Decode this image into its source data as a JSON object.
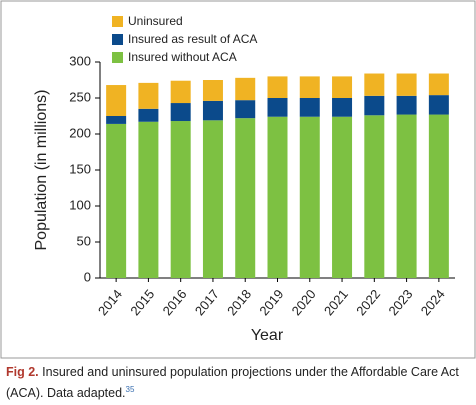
{
  "chart_data": {
    "type": "stacked-bar",
    "xlabel": "Year",
    "ylabel": "Population (in millions)",
    "categories": [
      "2014",
      "2015",
      "2016",
      "2017",
      "2018",
      "2019",
      "2020",
      "2021",
      "2022",
      "2023",
      "2024"
    ],
    "series": [
      {
        "name": "Uninsured",
        "color": "#f0b323",
        "values": [
          43,
          36,
          31,
          29,
          31,
          30,
          30,
          30,
          31,
          31,
          30
        ]
      },
      {
        "name": "Insured as result of ACA",
        "color": "#0b4a8b",
        "values": [
          11,
          18,
          25,
          27,
          25,
          26,
          26,
          26,
          27,
          26,
          27
        ]
      },
      {
        "name": "Insured without ACA",
        "color": "#7dc142",
        "values": [
          214,
          217,
          218,
          219,
          222,
          224,
          224,
          224,
          226,
          227,
          227
        ]
      }
    ],
    "ylim": [
      0,
      300
    ],
    "yticks": [
      0,
      50,
      100,
      150,
      200,
      250,
      300
    ],
    "legend": "top-left",
    "caption_label": "Fig 2.",
    "caption": "Insured and uninsured population projections under the Affordable Care Act (ACA). Data adapted.",
    "caption_ref": "35"
  }
}
